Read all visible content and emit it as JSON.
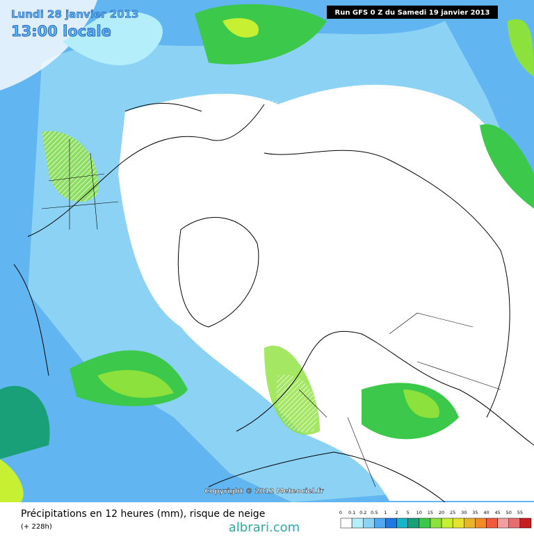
{
  "header": {
    "valid_date": "Lundi 28 janvier 2013",
    "local_time": "13:00 locale",
    "run": "Run GFS 0 Z du Samedi 19 janvier 2013"
  },
  "map": {
    "copyright": "Copyright © 2012 Meteociel.fr"
  },
  "footer": {
    "title": "Précipitations en 12 heures (mm), risque de neige",
    "lead_time": "(+ 228h)",
    "watermark": "albrari.com"
  },
  "legend": {
    "items": [
      {
        "label": "0",
        "color": "#ffffff"
      },
      {
        "label": "0.1",
        "color": "#b4eefa"
      },
      {
        "label": "0.2",
        "color": "#8cd2f5"
      },
      {
        "label": "0.5",
        "color": "#4fa8f0"
      },
      {
        "label": "1",
        "color": "#1e78e6"
      },
      {
        "label": "2",
        "color": "#18b4c8"
      },
      {
        "label": "5",
        "color": "#19a078"
      },
      {
        "label": "10",
        "color": "#3cc84b"
      },
      {
        "label": "15",
        "color": "#8ce13c"
      },
      {
        "label": "20",
        "color": "#c8f032"
      },
      {
        "label": "25",
        "color": "#e6e132"
      },
      {
        "label": "30",
        "color": "#e6b42d"
      },
      {
        "label": "35",
        "color": "#f08c28"
      },
      {
        "label": "40",
        "color": "#f05a3c"
      },
      {
        "label": "45",
        "color": "#f0a0a0"
      },
      {
        "label": "50",
        "color": "#e66e6e"
      },
      {
        "label": "55",
        "color": "#c81e1e"
      }
    ]
  }
}
